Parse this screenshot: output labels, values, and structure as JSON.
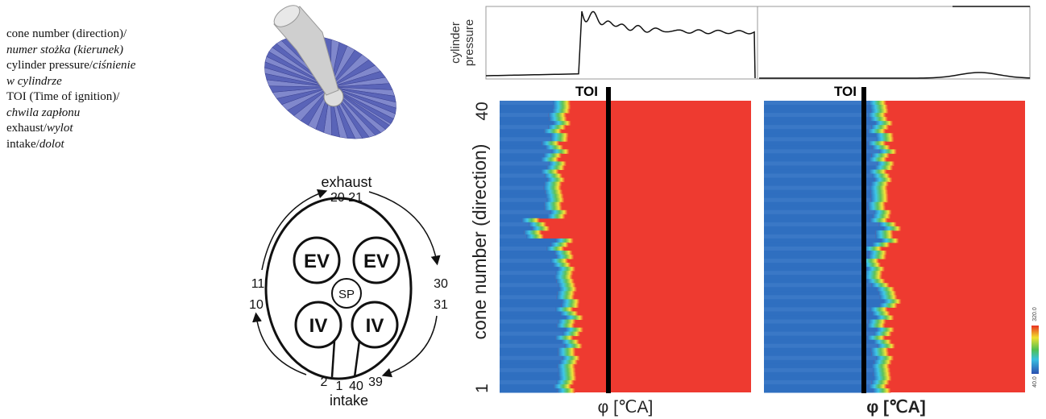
{
  "legend": {
    "lines": [
      {
        "normal": "cone number (direction)/"
      },
      {
        "italic": "numer stożka (kierunek)"
      },
      {
        "normal": "cylinder pressure/",
        "italic": "ciśnienie"
      },
      {
        "italic": "w cylindrze"
      },
      {
        "normal": "TOI (Time of ignition)/"
      },
      {
        "italic": "chwila zapłonu"
      },
      {
        "normal": "exhaust/",
        "italic": "wylot"
      },
      {
        "normal": "intake/",
        "italic": "dolot"
      }
    ]
  },
  "diagram": {
    "exhaust": "exhaust",
    "top_numbers": "20 21",
    "left_top": "11",
    "left_bottom": "10",
    "right_top": "30",
    "right_bottom": "31",
    "bottom_numbers": [
      "2",
      "1",
      "40",
      "39"
    ],
    "intake": "intake",
    "valves": [
      "EV",
      "EV",
      "SP",
      "IV",
      "IV"
    ]
  },
  "figure": {
    "pressure_label": [
      "cylinder",
      "pressure"
    ],
    "toi": [
      "TOI",
      "TOI"
    ],
    "y_label": "cone number (direction)",
    "y_top": "40",
    "y_bottom": "1",
    "x_labels": [
      "φ [℃A]",
      "φ [℃A]"
    ],
    "colorbar": [
      "320.0",
      "40.0"
    ]
  }
}
